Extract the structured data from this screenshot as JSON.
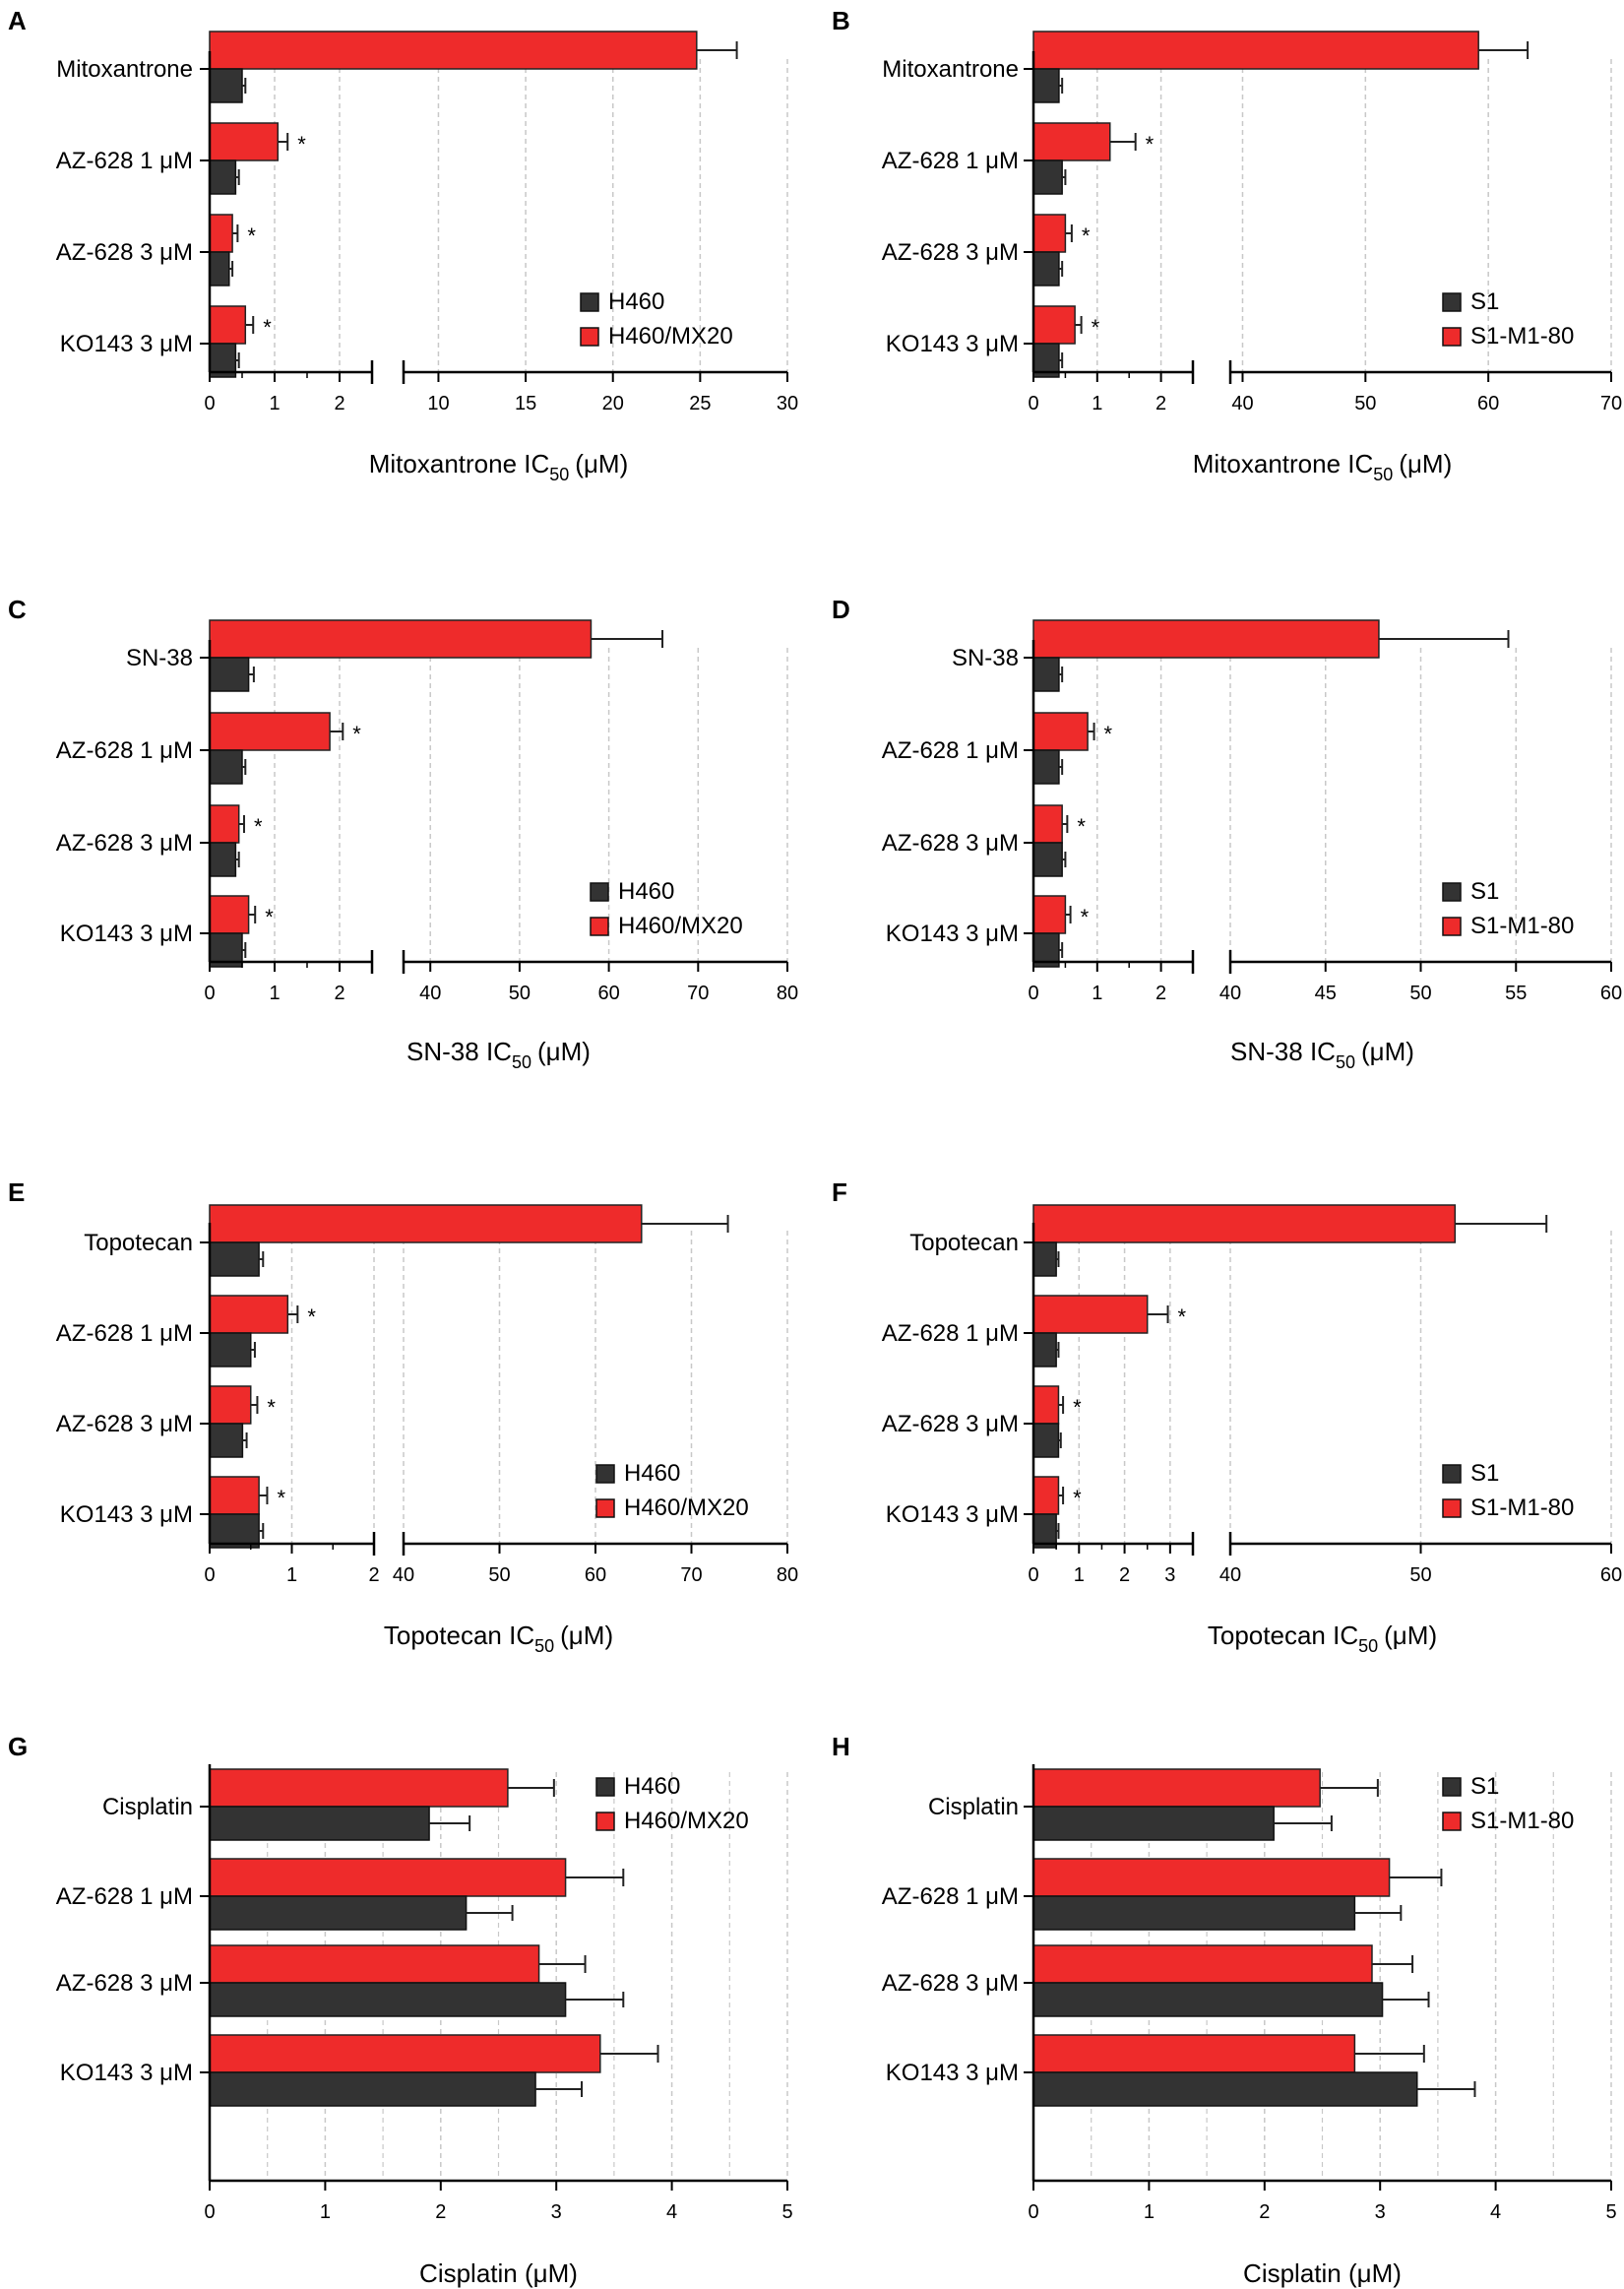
{
  "colors": {
    "treated": "#ee2b2b",
    "control": "#333333",
    "grid": "#c8c8c8",
    "axis": "#000000"
  },
  "chart_data": [
    {
      "panel": "A",
      "type": "bar",
      "orientation": "horizontal",
      "categories": [
        "Mitoxantrone",
        "AZ-628 1 μM",
        "AZ-628 3 μM",
        "KO143 3 μM"
      ],
      "xlabel_main": "Mitoxantrone IC",
      "xlabel_sub": "50",
      "xlabel_unit": "(μM)",
      "segments": [
        {
          "min": 0,
          "max": 2.5,
          "ticks": [
            0,
            1,
            2
          ]
        },
        {
          "min": 8,
          "max": 30,
          "ticks": [
            10,
            15,
            20,
            25,
            30
          ]
        }
      ],
      "series": [
        {
          "name": "H460/MX20",
          "color": "#ee2b2b",
          "values": [
            24.8,
            1.05,
            0.35,
            0.55
          ],
          "errors": [
            2.3,
            0.15,
            0.08,
            0.12
          ],
          "significant": [
            false,
            true,
            true,
            true
          ]
        },
        {
          "name": "H460",
          "color": "#333333",
          "values": [
            0.5,
            0.4,
            0.3,
            0.4
          ],
          "errors": [
            0.05,
            0.05,
            0.05,
            0.05
          ]
        }
      ],
      "legend": {
        "position": "bottom-right",
        "entries": [
          "H460",
          "H460/MX20"
        ]
      }
    },
    {
      "panel": "B",
      "type": "bar",
      "orientation": "horizontal",
      "categories": [
        "Mitoxantrone",
        "AZ-628 1 μM",
        "AZ-628 3 μM",
        "KO143 3 μM"
      ],
      "xlabel_main": "Mitoxantrone IC",
      "xlabel_sub": "50",
      "xlabel_unit": "(μM)",
      "segments": [
        {
          "min": 0,
          "max": 2.5,
          "ticks": [
            0,
            1,
            2
          ]
        },
        {
          "min": 39,
          "max": 70,
          "ticks": [
            40,
            50,
            60,
            70
          ]
        }
      ],
      "series": [
        {
          "name": "S1-M1-80",
          "color": "#ee2b2b",
          "values": [
            59.2,
            1.2,
            0.5,
            0.65
          ],
          "errors": [
            4.0,
            0.4,
            0.1,
            0.1
          ],
          "significant": [
            false,
            true,
            true,
            true
          ]
        },
        {
          "name": "S1",
          "color": "#333333",
          "values": [
            0.4,
            0.45,
            0.4,
            0.4
          ],
          "errors": [
            0.05,
            0.05,
            0.05,
            0.05
          ]
        }
      ],
      "legend": {
        "position": "bottom-right",
        "entries": [
          "S1",
          "S1-M1-80"
        ]
      }
    },
    {
      "panel": "C",
      "type": "bar",
      "orientation": "horizontal",
      "categories": [
        "SN-38",
        "AZ-628 1 μM",
        "AZ-628 3 μM",
        "KO143 3 μM"
      ],
      "xlabel_main": "SN-38 IC",
      "xlabel_sub": "50",
      "xlabel_unit": "(μM)",
      "segments": [
        {
          "min": 0,
          "max": 2.5,
          "ticks": [
            0,
            1,
            2
          ]
        },
        {
          "min": 37,
          "max": 80,
          "ticks": [
            40,
            50,
            60,
            70,
            80
          ]
        }
      ],
      "series": [
        {
          "name": "H460/MX20",
          "color": "#ee2b2b",
          "values": [
            58.0,
            1.85,
            0.45,
            0.6
          ],
          "errors": [
            8.0,
            0.2,
            0.08,
            0.1
          ],
          "significant": [
            false,
            true,
            true,
            true
          ]
        },
        {
          "name": "H460",
          "color": "#333333",
          "values": [
            0.6,
            0.5,
            0.4,
            0.5
          ],
          "errors": [
            0.08,
            0.05,
            0.05,
            0.05
          ]
        }
      ],
      "legend": {
        "position": "bottom-right",
        "entries": [
          "H460",
          "H460/MX20"
        ]
      }
    },
    {
      "panel": "D",
      "type": "bar",
      "orientation": "horizontal",
      "categories": [
        "SN-38",
        "AZ-628 1 μM",
        "AZ-628 3 μM",
        "KO143 3 μM"
      ],
      "xlabel_main": "SN-38 IC",
      "xlabel_sub": "50",
      "xlabel_unit": "(μM)",
      "segments": [
        {
          "min": 0,
          "max": 2.5,
          "ticks": [
            0,
            1,
            2
          ]
        },
        {
          "min": 40,
          "max": 60,
          "ticks": [
            40,
            45,
            50,
            55,
            60
          ]
        }
      ],
      "series": [
        {
          "name": "S1-M1-80",
          "color": "#ee2b2b",
          "values": [
            47.8,
            0.85,
            0.45,
            0.5
          ],
          "errors": [
            6.8,
            0.1,
            0.08,
            0.08
          ],
          "significant": [
            false,
            true,
            true,
            true
          ]
        },
        {
          "name": "S1",
          "color": "#333333",
          "values": [
            0.4,
            0.4,
            0.45,
            0.4
          ],
          "errors": [
            0.05,
            0.05,
            0.05,
            0.05
          ]
        }
      ],
      "legend": {
        "position": "bottom-right",
        "entries": [
          "S1",
          "S1-M1-80"
        ]
      }
    },
    {
      "panel": "E",
      "type": "bar",
      "orientation": "horizontal",
      "categories": [
        "Topotecan",
        "AZ-628 1 μM",
        "AZ-628 3 μM",
        "KO143 3 μM"
      ],
      "xlabel_main": "Topotecan IC",
      "xlabel_sub": "50",
      "xlabel_unit": "(μM)",
      "segments": [
        {
          "min": 0,
          "max": 2,
          "ticks": [
            0,
            1,
            2
          ]
        },
        {
          "min": 40,
          "max": 80,
          "ticks": [
            40,
            50,
            60,
            70,
            80
          ]
        }
      ],
      "series": [
        {
          "name": "H460/MX20",
          "color": "#ee2b2b",
          "values": [
            64.8,
            0.95,
            0.5,
            0.6
          ],
          "errors": [
            9.0,
            0.12,
            0.08,
            0.1
          ],
          "significant": [
            false,
            true,
            true,
            true
          ]
        },
        {
          "name": "H460",
          "color": "#333333",
          "values": [
            0.6,
            0.5,
            0.4,
            0.6
          ],
          "errors": [
            0.05,
            0.05,
            0.05,
            0.05
          ]
        }
      ],
      "legend": {
        "position": "bottom-right",
        "entries": [
          "H460",
          "H460/MX20"
        ]
      }
    },
    {
      "panel": "F",
      "type": "bar",
      "orientation": "horizontal",
      "categories": [
        "Topotecan",
        "AZ-628 1 μM",
        "AZ-628 3 μM",
        "KO143 3 μM"
      ],
      "xlabel_main": "Topotecan IC",
      "xlabel_sub": "50",
      "xlabel_unit": "(μM)",
      "segments": [
        {
          "min": 0,
          "max": 3.5,
          "ticks": [
            0,
            1,
            2,
            3
          ]
        },
        {
          "min": 40,
          "max": 60,
          "ticks": [
            40,
            50,
            60
          ]
        }
      ],
      "series": [
        {
          "name": "S1-M1-80",
          "color": "#ee2b2b",
          "values": [
            51.8,
            2.5,
            0.55,
            0.55
          ],
          "errors": [
            4.8,
            0.45,
            0.1,
            0.1
          ],
          "significant": [
            false,
            true,
            true,
            true
          ]
        },
        {
          "name": "S1",
          "color": "#333333",
          "values": [
            0.5,
            0.5,
            0.55,
            0.5
          ],
          "errors": [
            0.05,
            0.05,
            0.05,
            0.05
          ]
        }
      ],
      "legend": {
        "position": "bottom-right",
        "entries": [
          "S1",
          "S1-M1-80"
        ]
      }
    },
    {
      "panel": "G",
      "type": "bar",
      "orientation": "horizontal",
      "categories": [
        "Cisplatin",
        "AZ-628 1 μM",
        "AZ-628 3 μM",
        "KO143 3 μM"
      ],
      "xlabel_main": "Cisplatin (μM)",
      "xlabel_sub": "",
      "xlabel_unit": "",
      "segments": [
        {
          "min": 0,
          "max": 5,
          "ticks": [
            0,
            1,
            2,
            3,
            4,
            5
          ]
        }
      ],
      "series": [
        {
          "name": "H460/MX20",
          "color": "#ee2b2b",
          "values": [
            2.58,
            3.08,
            2.85,
            3.38
          ],
          "errors": [
            0.4,
            0.5,
            0.4,
            0.5
          ],
          "significant": [
            false,
            false,
            false,
            false
          ]
        },
        {
          "name": "H460",
          "color": "#333333",
          "values": [
            1.9,
            2.22,
            3.08,
            2.82
          ],
          "errors": [
            0.35,
            0.4,
            0.5,
            0.4
          ]
        }
      ],
      "legend": {
        "position": "top-right",
        "entries": [
          "H460",
          "H460/MX20"
        ]
      }
    },
    {
      "panel": "H",
      "type": "bar",
      "orientation": "horizontal",
      "categories": [
        "Cisplatin",
        "AZ-628 1 μM",
        "AZ-628 3 μM",
        "KO143 3 μM"
      ],
      "xlabel_main": "Cisplatin (μM)",
      "xlabel_sub": "",
      "xlabel_unit": "",
      "segments": [
        {
          "min": 0,
          "max": 5,
          "ticks": [
            0,
            1,
            2,
            3,
            4,
            5
          ]
        }
      ],
      "series": [
        {
          "name": "S1-M1-80",
          "color": "#ee2b2b",
          "values": [
            2.48,
            3.08,
            2.93,
            2.78
          ],
          "errors": [
            0.5,
            0.45,
            0.35,
            0.6
          ],
          "significant": [
            false,
            false,
            false,
            false
          ]
        },
        {
          "name": "S1",
          "color": "#333333",
          "values": [
            2.08,
            2.78,
            3.02,
            3.32
          ],
          "errors": [
            0.5,
            0.4,
            0.4,
            0.5
          ]
        }
      ],
      "legend": {
        "position": "top-right",
        "entries": [
          "S1",
          "S1-M1-80"
        ]
      }
    }
  ]
}
